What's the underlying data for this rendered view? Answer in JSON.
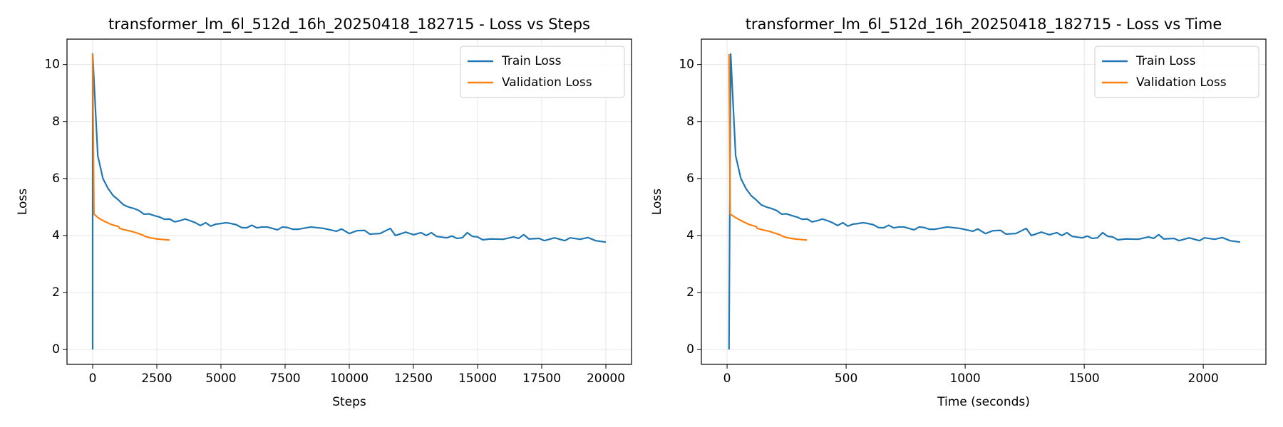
{
  "chart_data": [
    {
      "type": "line",
      "title": "transformer_lm_6l_512d_16h_20250418_182715 - Loss vs Steps",
      "xlabel": "Steps",
      "ylabel": "Loss",
      "xlim": [
        -1000,
        21000
      ],
      "xticks": [
        0,
        2500,
        5000,
        7500,
        10000,
        12500,
        15000,
        17500,
        20000
      ],
      "ylim": [
        -0.52,
        10.89
      ],
      "yticks": [
        0,
        2,
        4,
        6,
        8,
        10
      ],
      "grid": true,
      "legend": "upper right",
      "series": [
        {
          "name": "Train Loss",
          "color": "#1f77b4",
          "x": [
            0,
            0,
            200,
            400,
            600,
            800,
            1000,
            1200,
            1400,
            1600,
            1800,
            2000,
            2200,
            2400,
            2600,
            2800,
            3000,
            3200,
            3400,
            3600,
            3800,
            4000,
            4200,
            4400,
            4600,
            4800,
            5000,
            5200,
            5400,
            5600,
            5800,
            6000,
            6200,
            6400,
            6600,
            6800,
            7000,
            7200,
            7400,
            7600,
            7800,
            8000,
            8500,
            9000,
            9500,
            9700,
            10000,
            10300,
            10600,
            10800,
            11200,
            11600,
            11800,
            12200,
            12500,
            12800,
            13000,
            13200,
            13400,
            13800,
            14000,
            14200,
            14400,
            14600,
            14800,
            15000,
            15200,
            15500,
            16000,
            16400,
            16600,
            16800,
            17000,
            17400,
            17600,
            18000,
            18400,
            18600,
            19000,
            19300,
            19600,
            20000
          ],
          "values": [
            0,
            10.37,
            6.8,
            6.0,
            5.65,
            5.4,
            5.25,
            5.08,
            5.0,
            4.95,
            4.88,
            4.75,
            4.76,
            4.7,
            4.65,
            4.57,
            4.58,
            4.48,
            4.52,
            4.58,
            4.52,
            4.45,
            4.35,
            4.45,
            4.33,
            4.4,
            4.42,
            4.45,
            4.42,
            4.38,
            4.28,
            4.27,
            4.36,
            4.27,
            4.3,
            4.3,
            4.25,
            4.2,
            4.3,
            4.28,
            4.22,
            4.22,
            4.3,
            4.25,
            4.15,
            4.23,
            4.07,
            4.17,
            4.18,
            4.05,
            4.07,
            4.25,
            4.0,
            4.12,
            4.03,
            4.1,
            4.0,
            4.1,
            3.97,
            3.92,
            3.98,
            3.9,
            3.92,
            4.1,
            3.97,
            3.95,
            3.85,
            3.88,
            3.87,
            3.95,
            3.9,
            4.03,
            3.88,
            3.9,
            3.82,
            3.92,
            3.82,
            3.92,
            3.87,
            3.93,
            3.82,
            3.77
          ]
        },
        {
          "name": "Validation Loss",
          "color": "#ff7f0e",
          "x": [
            0,
            50,
            250,
            500,
            750,
            1000,
            1050,
            1250,
            1500,
            1750,
            1950,
            2050,
            2250,
            2500,
            2750,
            3000
          ],
          "values": [
            10.37,
            4.75,
            4.6,
            4.48,
            4.38,
            4.32,
            4.25,
            4.2,
            4.15,
            4.08,
            4.02,
            3.97,
            3.92,
            3.88,
            3.86,
            3.84
          ]
        }
      ]
    },
    {
      "type": "line",
      "title": "transformer_lm_6l_512d_16h_20250418_182715 - Loss vs Time",
      "xlabel": "Time (seconds)",
      "ylabel": "Loss",
      "xlim": [
        -108,
        2263
      ],
      "xticks": [
        0,
        500,
        1000,
        1500,
        2000
      ],
      "ylim": [
        -0.52,
        10.89
      ],
      "yticks": [
        0,
        2,
        4,
        6,
        8,
        10
      ],
      "grid": true,
      "legend": "upper right",
      "series": [
        {
          "name": "Train Loss",
          "color": "#1f77b4",
          "x": [
            8,
            15,
            36,
            58,
            79,
            101,
            122,
            143,
            165,
            186,
            208,
            229,
            250,
            272,
            293,
            315,
            336,
            357,
            379,
            400,
            422,
            443,
            464,
            486,
            507,
            529,
            550,
            571,
            593,
            614,
            636,
            657,
            678,
            700,
            721,
            743,
            764,
            785,
            807,
            828,
            850,
            871,
            925,
            978,
            1032,
            1053,
            1085,
            1117,
            1149,
            1171,
            1213,
            1256,
            1278,
            1320,
            1353,
            1385,
            1406,
            1427,
            1449,
            1492,
            1513,
            1534,
            1556,
            1577,
            1599,
            1620,
            1641,
            1674,
            1727,
            1770,
            1791,
            1813,
            1834,
            1877,
            1898,
            1941,
            1984,
            2005,
            2048,
            2080,
            2112,
            2155
          ],
          "values": [
            0,
            10.37,
            6.8,
            6.0,
            5.65,
            5.4,
            5.25,
            5.08,
            5.0,
            4.95,
            4.88,
            4.75,
            4.76,
            4.7,
            4.65,
            4.57,
            4.58,
            4.48,
            4.52,
            4.58,
            4.52,
            4.45,
            4.35,
            4.45,
            4.33,
            4.4,
            4.42,
            4.45,
            4.42,
            4.38,
            4.28,
            4.27,
            4.36,
            4.27,
            4.3,
            4.3,
            4.25,
            4.2,
            4.3,
            4.28,
            4.22,
            4.22,
            4.3,
            4.25,
            4.15,
            4.23,
            4.07,
            4.17,
            4.18,
            4.05,
            4.07,
            4.25,
            4.0,
            4.12,
            4.03,
            4.1,
            4.0,
            4.1,
            3.97,
            3.92,
            3.98,
            3.9,
            3.92,
            4.1,
            3.97,
            3.95,
            3.85,
            3.88,
            3.87,
            3.95,
            3.9,
            4.03,
            3.88,
            3.9,
            3.82,
            3.92,
            3.82,
            3.92,
            3.87,
            3.93,
            3.82,
            3.77
          ]
        },
        {
          "name": "Validation Loss",
          "color": "#ff7f0e",
          "x": [
            8,
            13,
            42,
            69,
            95,
            122,
            127,
            149,
            176,
            202,
            224,
            234,
            256,
            283,
            309,
            336
          ],
          "values": [
            10.37,
            4.75,
            4.6,
            4.48,
            4.38,
            4.32,
            4.25,
            4.2,
            4.15,
            4.08,
            4.02,
            3.97,
            3.92,
            3.88,
            3.86,
            3.84
          ]
        }
      ]
    }
  ]
}
